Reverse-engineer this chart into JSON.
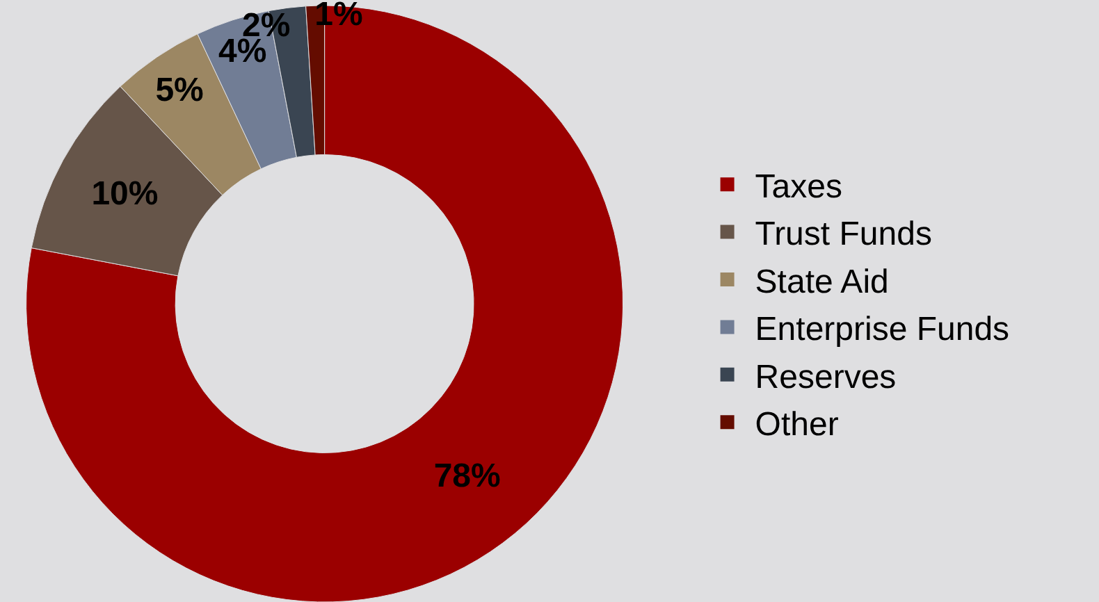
{
  "chart_data": {
    "type": "donut",
    "categories": [
      "Taxes",
      "Trust Funds",
      "State Aid",
      "Enterprise Funds",
      "Reserves",
      "Other"
    ],
    "values": [
      78,
      10,
      5,
      4,
      2,
      1
    ],
    "value_labels": [
      "78%",
      "10%",
      "5%",
      "4%",
      "2%",
      "1%"
    ],
    "colors": [
      "#9b0000",
      "#665549",
      "#9c8763",
      "#717d95",
      "#3a4552",
      "#640c00"
    ],
    "legend": "right"
  }
}
